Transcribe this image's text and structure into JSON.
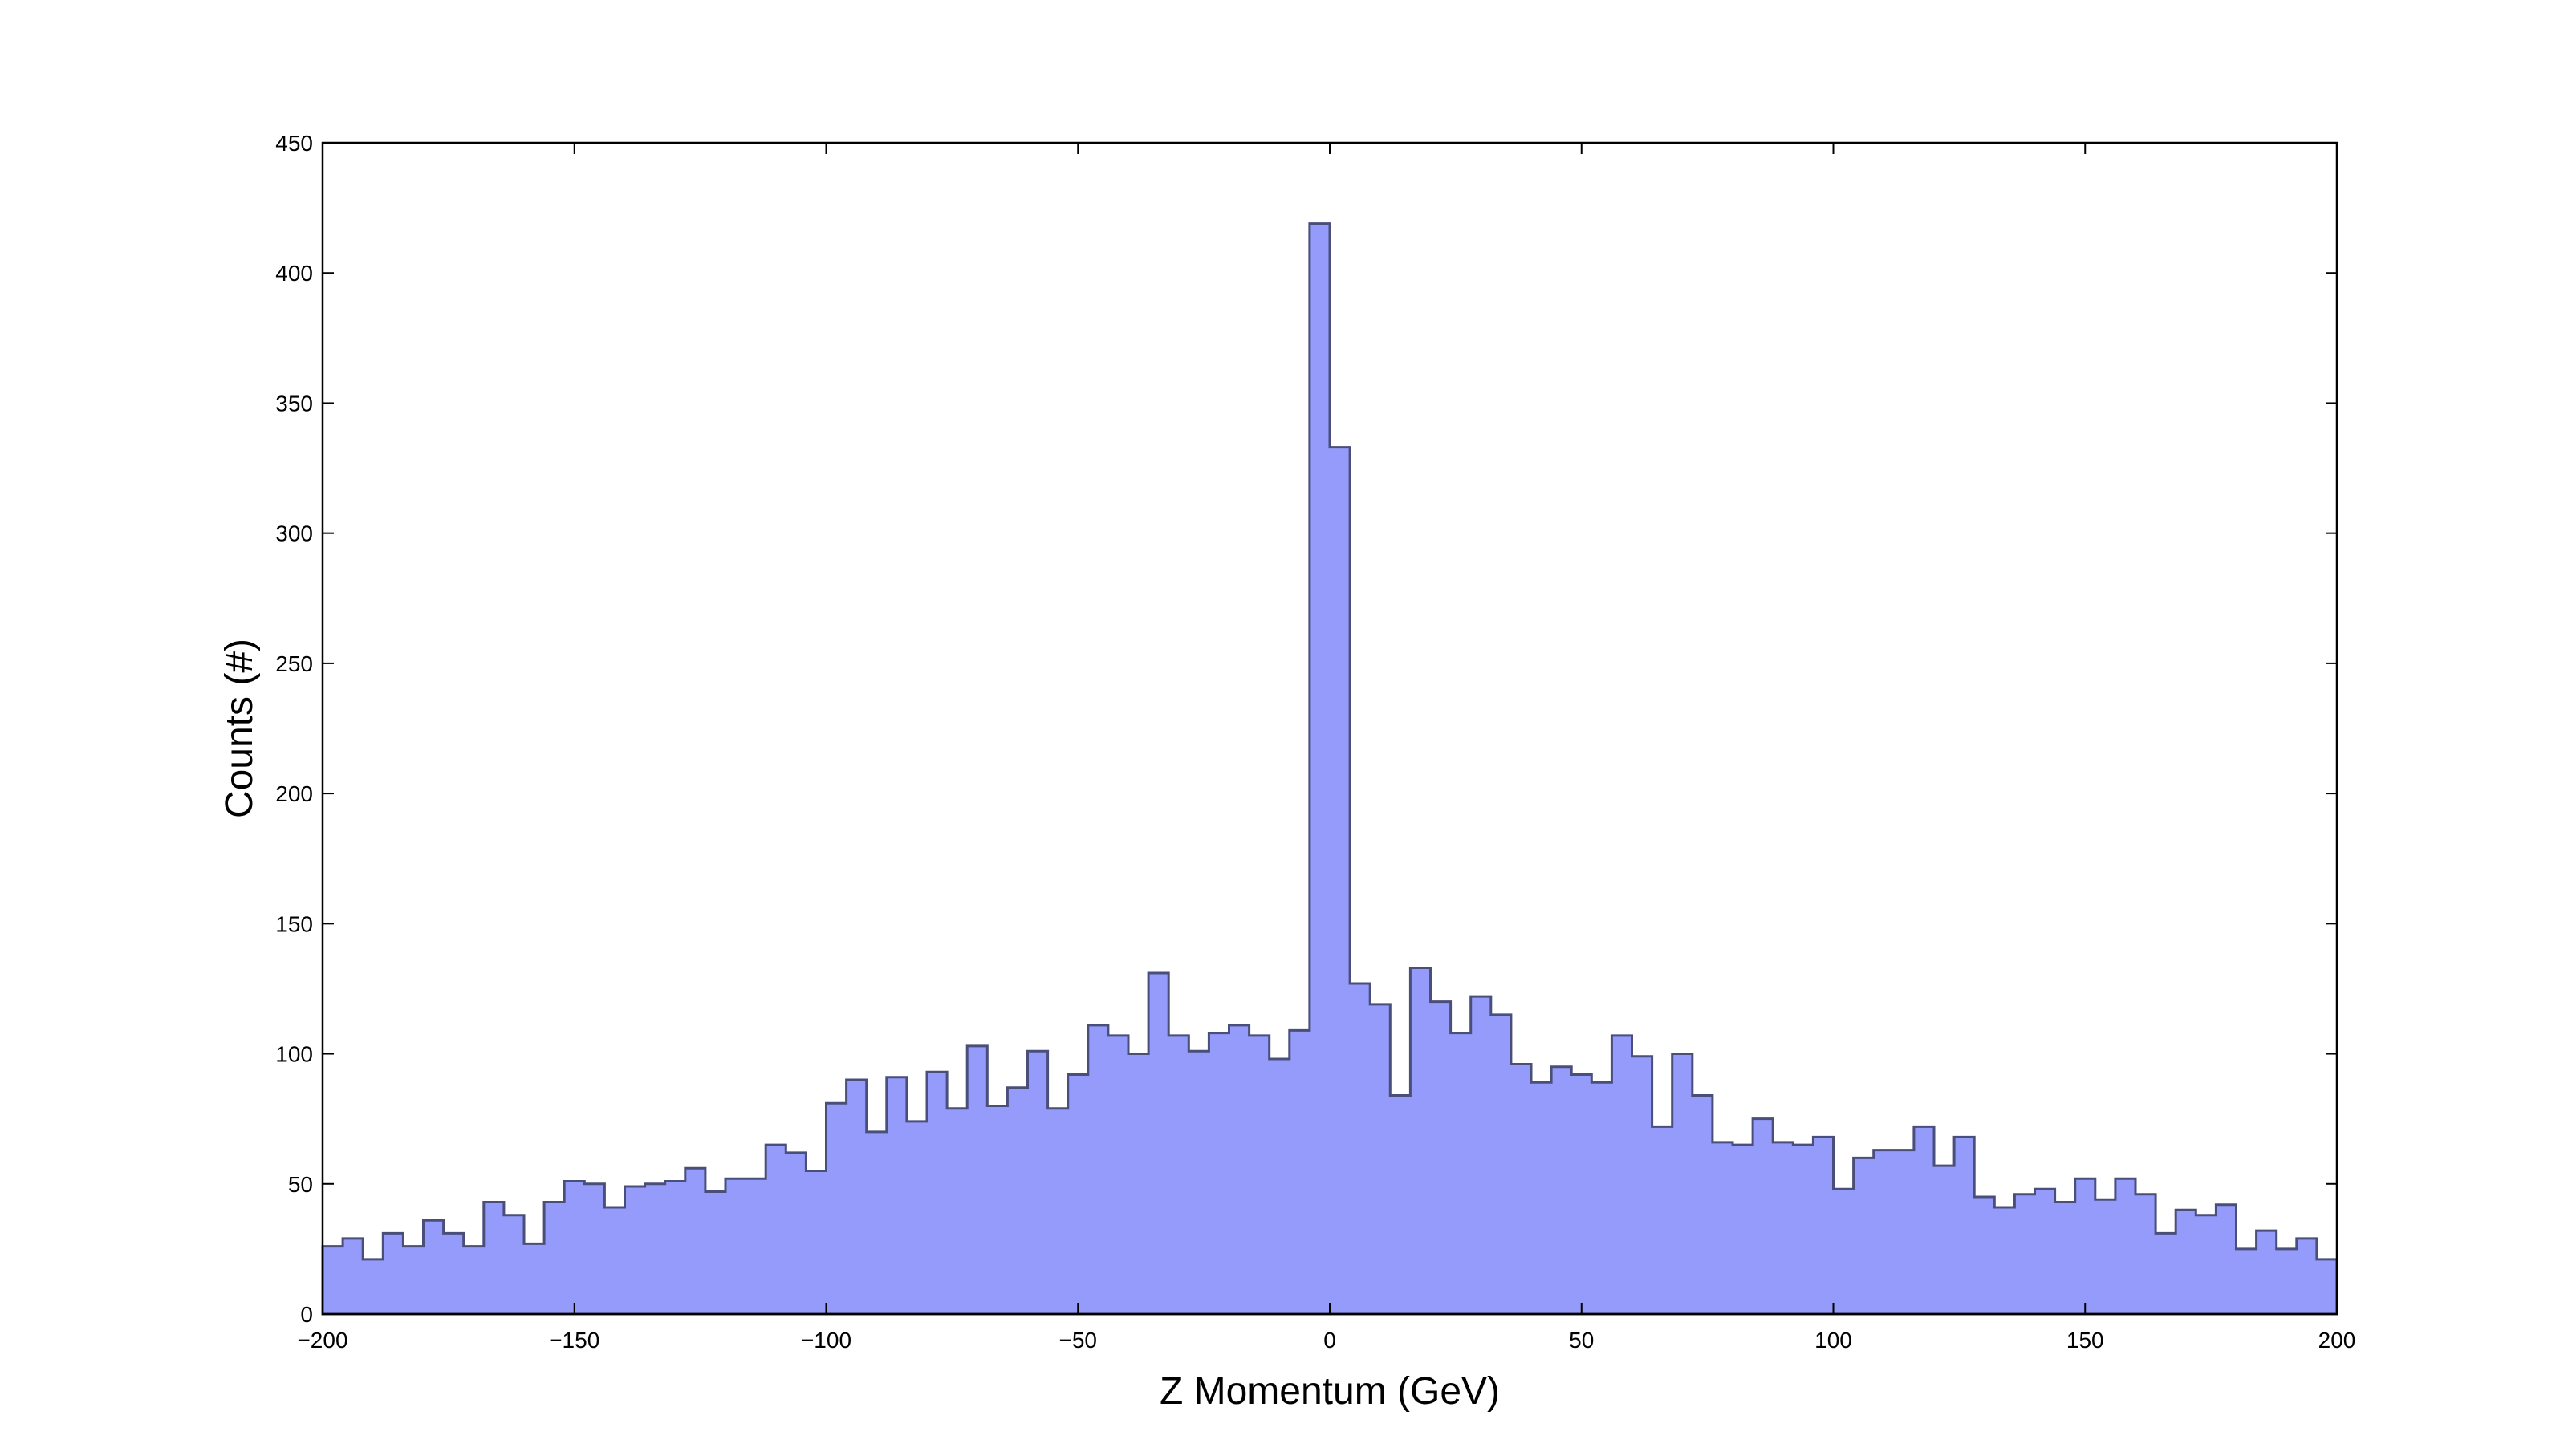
{
  "chart_data": {
    "type": "bar",
    "style": "histogram-stepfilled",
    "xlabel": "Z Momentum (GeV)",
    "ylabel": "Counts (#)",
    "xlim": [
      -200,
      200
    ],
    "ylim": [
      0,
      450
    ],
    "xticks": [
      -200,
      -150,
      -100,
      -50,
      0,
      50,
      100,
      150,
      200
    ],
    "xtick_labels": [
      "−200",
      "−150",
      "−100",
      "−50",
      "0",
      "50",
      "100",
      "150",
      "200"
    ],
    "yticks": [
      0,
      50,
      100,
      150,
      200,
      250,
      300,
      350,
      400,
      450
    ],
    "ytick_labels": [
      "0",
      "50",
      "100",
      "150",
      "200",
      "250",
      "300",
      "350",
      "400",
      "450"
    ],
    "bin_edges_start": -200,
    "bin_width": 4,
    "values": [
      26,
      29,
      21,
      31,
      26,
      36,
      31,
      26,
      43,
      38,
      27,
      43,
      51,
      50,
      41,
      49,
      50,
      51,
      56,
      47,
      52,
      52,
      65,
      62,
      55,
      81,
      90,
      70,
      91,
      74,
      93,
      79,
      103,
      80,
      87,
      101,
      79,
      92,
      111,
      107,
      100,
      131,
      107,
      101,
      108,
      111,
      107,
      98,
      109,
      419,
      333,
      127,
      119,
      84,
      133,
      120,
      108,
      122,
      115,
      96,
      89,
      95,
      92,
      89,
      107,
      99,
      72,
      100,
      84,
      66,
      65,
      75,
      66,
      65,
      68,
      48,
      60,
      63,
      63,
      72,
      57,
      68,
      45,
      41,
      46,
      48,
      43,
      52,
      44,
      52,
      46,
      31,
      40,
      38,
      42,
      25,
      32,
      25,
      29,
      21
    ],
    "fill_color": "#949bfa",
    "edge_color": "#4a4f7a",
    "grid": false
  }
}
